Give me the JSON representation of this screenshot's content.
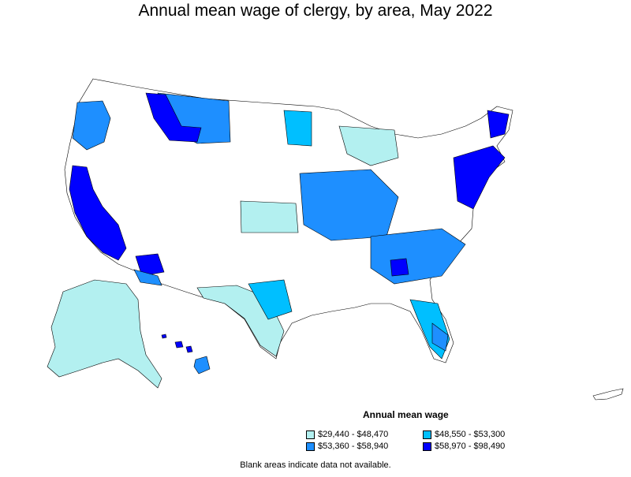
{
  "title": "Annual mean wage of clergy, by area, May 2022",
  "legend": {
    "title": "Annual mean wage",
    "items": [
      {
        "label": "$29,440 - $48,470",
        "color": "#b3f0f0"
      },
      {
        "label": "$48,550 - $53,300",
        "color": "#00bfff"
      },
      {
        "label": "$53,360 - $58,940",
        "color": "#1e8fff"
      },
      {
        "label": "$58,970 - $98,490",
        "color": "#0000ff"
      }
    ]
  },
  "note": "Blank areas indicate data not available.",
  "colors": {
    "blank": "#ffffff",
    "border": "#000000"
  }
}
